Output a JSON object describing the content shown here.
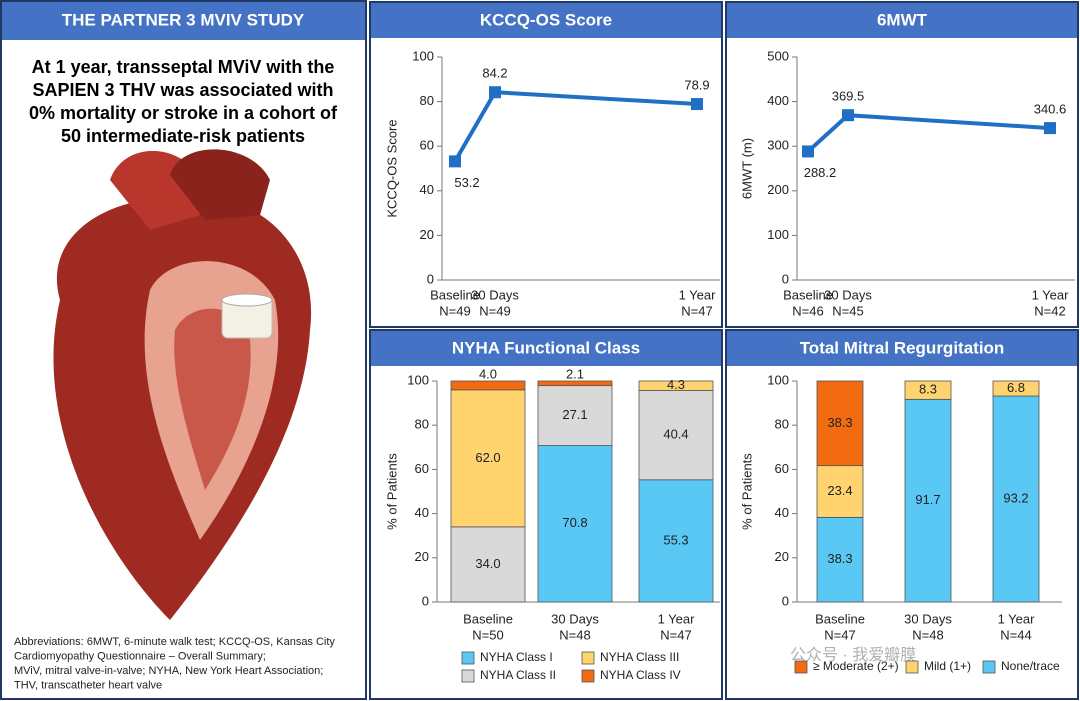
{
  "panel": {
    "title": "THE PARTNER 3 MVIV STUDY",
    "headline": [
      "At 1 year, transseptal MViV with the",
      "SAPIEN 3 THV was associated with",
      "0% mortality or stroke in a cohort of",
      "50 intermediate-risk patients"
    ],
    "abbreviations": [
      "Abbreviations: 6MWT, 6-minute walk test; KCCQ-OS, Kansas City",
      "Cardiomyopathy Questionnaire – Overall Summary;",
      "MViV, mitral valve-in-valve;  NYHA, New York Heart Association;",
      "THV, transcatheter heart valve"
    ]
  },
  "watermark": "公众号 · 我爱瓣膜",
  "chart_data": [
    {
      "type": "line",
      "title": "KCCQ-OS Score",
      "y_label": "KCCQ-OS Score",
      "categories": [
        "Baseline",
        "30 Days",
        "1 Year"
      ],
      "n_labels": [
        "N=49",
        "N=49",
        "N=47"
      ],
      "values": [
        53.2,
        84.2,
        78.9
      ],
      "color": "#1f6fc5",
      "ylim": [
        0,
        100
      ],
      "yticks": [
        0,
        20,
        40,
        60,
        80,
        100
      ]
    },
    {
      "type": "line",
      "title": "6MWT",
      "y_label": "6MWT (m)",
      "categories": [
        "Baseline",
        "30 Days",
        "1 Year"
      ],
      "n_labels": [
        "N=46",
        "N=45",
        "N=42"
      ],
      "values": [
        288.2,
        369.5,
        340.6
      ],
      "color": "#1f6fc5",
      "ylim": [
        0,
        500
      ],
      "yticks": [
        0,
        100,
        200,
        300,
        400,
        500
      ]
    },
    {
      "type": "stacked_bar",
      "title": "NYHA Functional Class",
      "y_label": "% of Patients",
      "categories": [
        "Baseline",
        "30 Days",
        "1 Year"
      ],
      "n_labels": [
        "N=50",
        "N=48",
        "N=47"
      ],
      "ylim": [
        0,
        100
      ],
      "yticks": [
        0,
        20,
        40,
        60,
        80,
        100
      ],
      "series": [
        {
          "name": "NYHA Class I",
          "color": "#5ac8f5",
          "values": [
            null,
            70.8,
            55.3
          ],
          "value_labels": [
            null,
            "70.8",
            "55.3"
          ]
        },
        {
          "name": "NYHA Class II",
          "color": "#d9d9d9",
          "values": [
            34.0,
            27.1,
            40.4
          ],
          "value_labels": [
            "34.0",
            "27.1",
            "40.4"
          ]
        },
        {
          "name": "NYHA Class III",
          "color": "#ffd36e",
          "values": [
            62.0,
            null,
            4.3
          ],
          "value_labels": [
            "62.0",
            null,
            "4.3"
          ]
        },
        {
          "name": "NYHA Class IV",
          "color": "#f26b10",
          "values": [
            4.0,
            2.1,
            null
          ],
          "value_labels": [
            "4.0",
            "2.1",
            null
          ]
        }
      ]
    },
    {
      "type": "stacked_bar",
      "title": "Total Mitral Regurgitation",
      "y_label": "% of Patients",
      "categories": [
        "Baseline",
        "30 Days",
        "1 Year"
      ],
      "n_labels": [
        "N=47",
        "N=48",
        "N=44"
      ],
      "ylim": [
        0,
        100
      ],
      "yticks": [
        0,
        20,
        40,
        60,
        80,
        100
      ],
      "series": [
        {
          "name": "None/trace",
          "color": "#5ac8f5",
          "values": [
            38.3,
            91.7,
            93.2
          ]
        },
        {
          "name": "Mild (1+)",
          "color": "#ffd36e",
          "values": [
            23.4,
            8.3,
            6.8
          ]
        },
        {
          "name": "≥ Moderate (2+)",
          "color": "#f26b10",
          "values": [
            38.3,
            null,
            null
          ]
        }
      ]
    }
  ]
}
